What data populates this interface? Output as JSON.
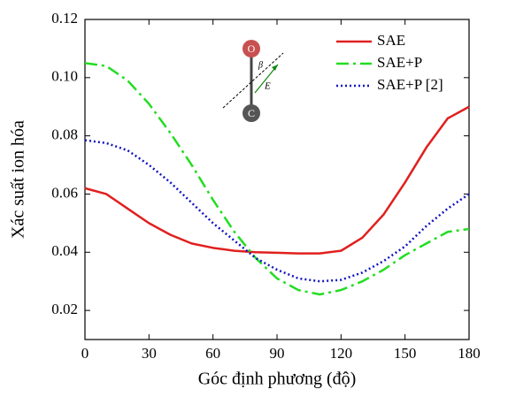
{
  "chart_data": {
    "type": "line",
    "x_label": "Góc định phương (độ)",
    "y_label": "Xác suất ion hóa",
    "x": [
      0,
      10,
      20,
      30,
      40,
      50,
      60,
      70,
      80,
      90,
      100,
      110,
      120,
      130,
      140,
      150,
      160,
      170,
      180
    ],
    "series": [
      {
        "name": "SAE",
        "color": "#e0201e",
        "dash": "none",
        "values": [
          0.062,
          0.06,
          0.055,
          0.05,
          0.046,
          0.043,
          0.0415,
          0.0405,
          0.04,
          0.0398,
          0.0396,
          0.0396,
          0.0405,
          0.045,
          0.053,
          0.064,
          0.076,
          0.086,
          0.09
        ]
      },
      {
        "name": "SAE+P",
        "color": "#22dd22",
        "dash": "14 5 3 5",
        "values": [
          0.105,
          0.104,
          0.099,
          0.091,
          0.081,
          0.07,
          0.058,
          0.047,
          0.038,
          0.031,
          0.027,
          0.0255,
          0.027,
          0.03,
          0.034,
          0.039,
          0.043,
          0.047,
          0.048
        ]
      },
      {
        "name": "SAE+P [2]",
        "color": "#1414c0",
        "dash": "2 3",
        "values": [
          0.0785,
          0.0775,
          0.075,
          0.07,
          0.064,
          0.057,
          0.05,
          0.044,
          0.038,
          0.034,
          0.031,
          0.03,
          0.0305,
          0.033,
          0.037,
          0.042,
          0.049,
          0.055,
          0.06
        ]
      }
    ],
    "xlim": [
      0,
      180
    ],
    "xticks": [
      0,
      30,
      60,
      90,
      120,
      150,
      180
    ],
    "ylim": [
      0.01,
      0.12
    ],
    "yticks": [
      0.02,
      0.04,
      0.06,
      0.08,
      {
        "value": 0.1,
        "label": "0.10"
      },
      0.12
    ],
    "legend": "upper right",
    "inset": {
      "top_atom": "O",
      "bottom_atom": "C",
      "angle": "β",
      "field": "E"
    }
  }
}
